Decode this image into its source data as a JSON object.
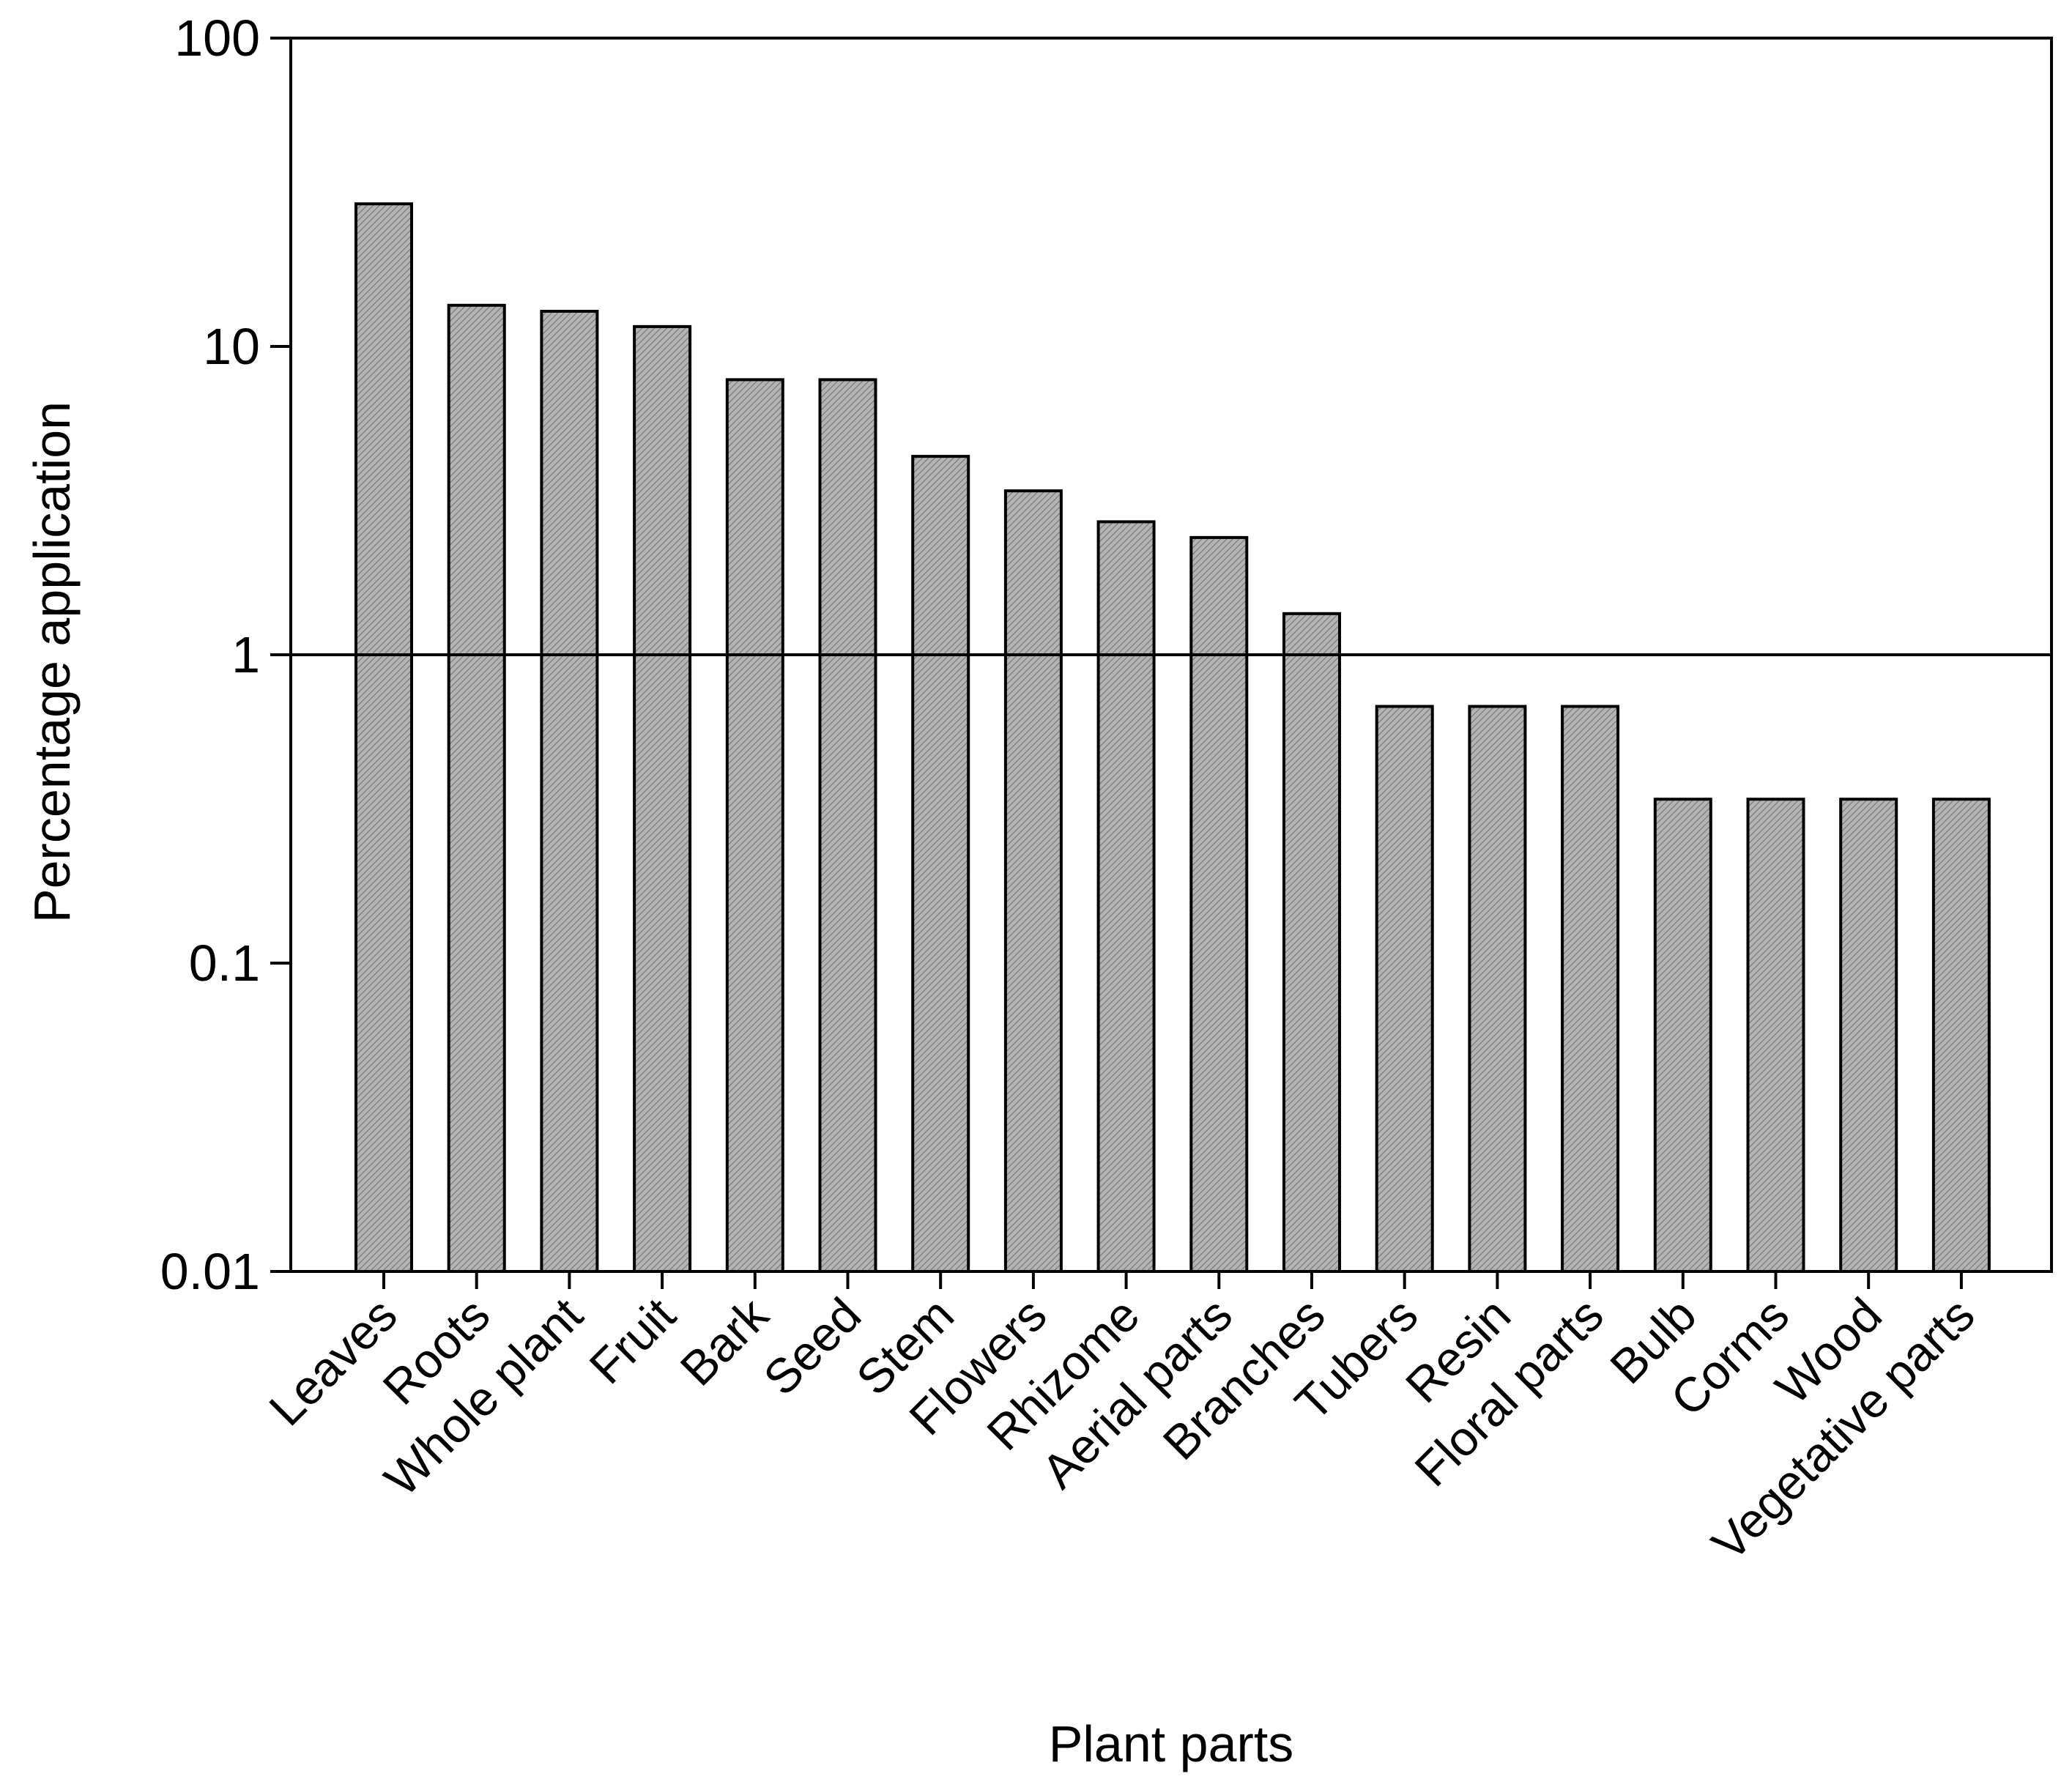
{
  "chart_data": {
    "type": "bar",
    "scale": "log",
    "title": "",
    "xlabel": "Plant parts",
    "ylabel": "Percentage application",
    "ylim": [
      0.01,
      100
    ],
    "yticks": [
      0.01,
      0.1,
      1,
      10,
      100
    ],
    "ytick_labels": [
      "0.01",
      "0.1",
      "1",
      "10",
      "100"
    ],
    "reference_line": 1,
    "bar_color": "#a0a0a0",
    "categories": [
      "Leaves",
      "Roots",
      "Whole plant",
      "Fruit",
      "Bark",
      "Seed",
      "Stem",
      "Flowers",
      "Rhizome",
      "Aerial parts",
      "Branches",
      "Tubers",
      "Resin",
      "Floral parts",
      "Bulb",
      "Corms",
      "Wood",
      "Vegetative parts"
    ],
    "values": [
      29,
      13.6,
      13,
      11.6,
      7.8,
      7.8,
      4.4,
      3.4,
      2.7,
      2.4,
      1.36,
      0.68,
      0.68,
      0.68,
      0.34,
      0.34,
      0.34,
      0.34
    ]
  }
}
